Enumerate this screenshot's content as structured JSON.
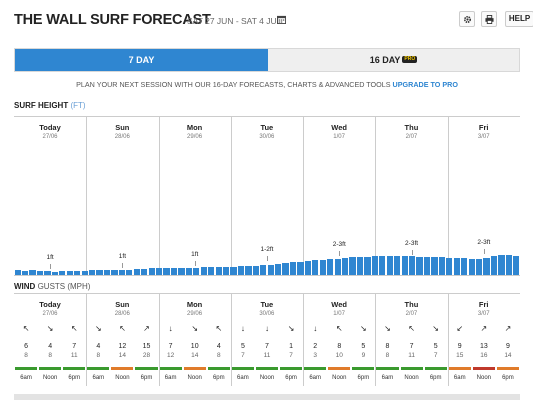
{
  "header": {
    "title": "THE WALL SURF FORECAST",
    "date_range": "SAT 27 JUN - SAT 4 JUL",
    "help_label": "HELP"
  },
  "tabs": [
    {
      "label": "7 DAY",
      "active": true
    },
    {
      "label": "16 DAY",
      "badge": "PRO",
      "active": false
    }
  ],
  "promo": {
    "text": "PLAN YOUR NEXT SESSION WITH OUR 16-DAY FORECASTS, CHARTS & ADVANCED TOOLS",
    "link": "UPGRADE TO PRO"
  },
  "surf": {
    "label": "SURF HEIGHT",
    "unit": "(FT)"
  },
  "wind": {
    "label": "WIND",
    "unit": "GUSTS (MPH)"
  },
  "days": [
    {
      "name": "Today",
      "date": "27/06",
      "height_label": "1ft"
    },
    {
      "name": "Sun",
      "date": "28/06",
      "height_label": "1ft"
    },
    {
      "name": "Mon",
      "date": "29/06",
      "height_label": "1ft"
    },
    {
      "name": "Tue",
      "date": "30/06",
      "height_label": "1-2ft"
    },
    {
      "name": "Wed",
      "date": "1/07",
      "height_label": "2-3ft"
    },
    {
      "name": "Thu",
      "date": "2/07",
      "height_label": "2-3ft"
    },
    {
      "name": "Fri",
      "date": "3/07",
      "height_label": "2-3ft"
    }
  ],
  "surf_bars": [
    0.45,
    0.35,
    0.45,
    0.4,
    0.4,
    0.3,
    0.35,
    0.35,
    0.4,
    0.4,
    0.45,
    0.45,
    0.45,
    0.45,
    0.5,
    0.5,
    0.55,
    0.55,
    0.6,
    0.6,
    0.6,
    0.65,
    0.6,
    0.6,
    0.6,
    0.7,
    0.75,
    0.75,
    0.75,
    0.75,
    0.8,
    0.8,
    0.85,
    0.9,
    0.95,
    1.0,
    1.05,
    1.15,
    1.2,
    1.3,
    1.35,
    1.4,
    1.45,
    1.5,
    1.55,
    1.6,
    1.6,
    1.65,
    1.7,
    1.7,
    1.7,
    1.7,
    1.7,
    1.7,
    1.65,
    1.6,
    1.6,
    1.6,
    1.55,
    1.55,
    1.55,
    1.5,
    1.5,
    1.55,
    1.75,
    1.85,
    1.85,
    1.75
  ],
  "wind_times": [
    "6am",
    "Noon",
    "6pm"
  ],
  "wind_arrows": [
    "↖",
    "↘",
    "↖",
    "↘",
    "↖",
    "↗",
    "↓",
    "↘",
    "↖",
    "↓",
    "↓",
    "↘",
    "↓",
    "↖",
    "↘",
    "↘",
    "↖",
    "↘",
    "↙",
    "↗",
    "↗"
  ],
  "wind_speeds": [
    "6",
    "4",
    "7",
    "4",
    "12",
    "15",
    "7",
    "10",
    "4",
    "5",
    "7",
    "1",
    "2",
    "8",
    "5",
    "8",
    "7",
    "5",
    "9",
    "13",
    "9"
  ],
  "wind_gusts": [
    "8",
    "8",
    "11",
    "8",
    "14",
    "28",
    "12",
    "14",
    "8",
    "7",
    "11",
    "7",
    "3",
    "10",
    "9",
    "8",
    "11",
    "7",
    "15",
    "16",
    "14"
  ],
  "wind_ratings": [
    "green",
    "green",
    "green",
    "green",
    "orange",
    "green",
    "green",
    "orange",
    "green",
    "green",
    "green",
    "green",
    "green",
    "orange",
    "green",
    "green",
    "green",
    "green",
    "orange",
    "red",
    "orange"
  ],
  "colors": {
    "accent": "#2f86d1",
    "rating_green": "#3a9a2e",
    "rating_orange": "#e07b2a",
    "rating_red": "#c0392b"
  }
}
